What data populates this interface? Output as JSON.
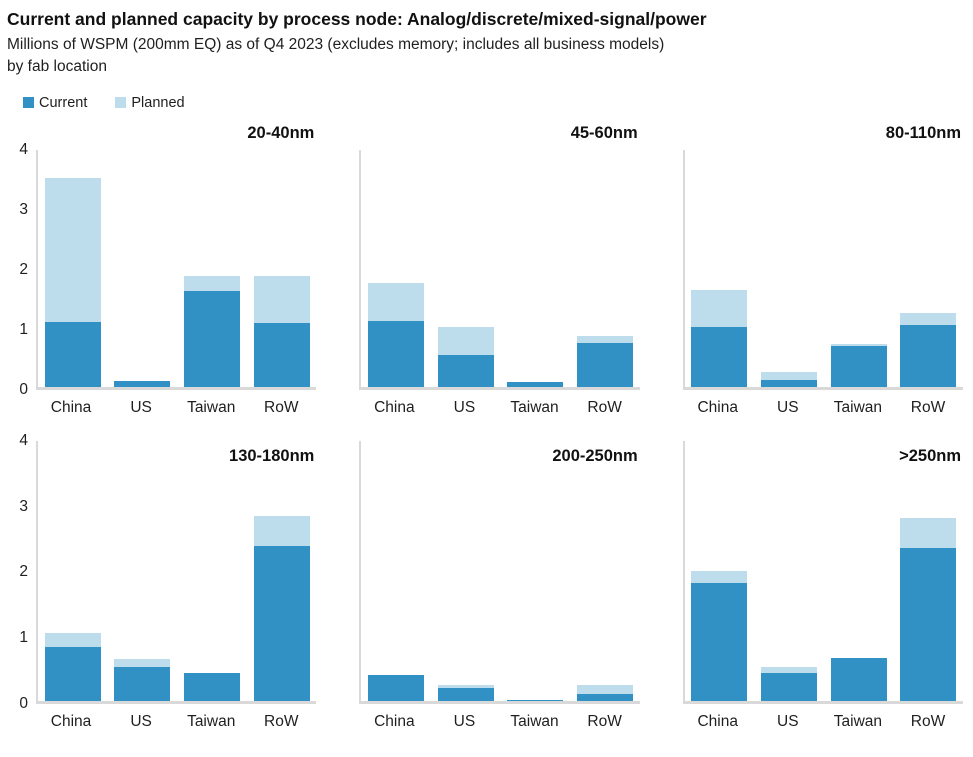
{
  "header": {
    "title": "Current and planned capacity by process node: Analog/discrete/mixed-signal/power",
    "subtitle_line1": "Millions of WSPM (200mm EQ) as of Q4 2023 (excludes memory; includes all business models)",
    "subtitle_line2": "by fab location"
  },
  "legend": {
    "current_label": "Current",
    "planned_label": "Planned"
  },
  "colors": {
    "current": "#3191c4",
    "planned": "#bddcec",
    "axis_gray": "#d9d9d9"
  },
  "chart_data": {
    "type": "bar",
    "stacked": true,
    "title": "Current and planned capacity by process node: Analog/discrete/mixed-signal/power",
    "subtitle": "Millions of WSPM (200mm EQ) as of Q4 2023 (excludes memory; includes all business models) by fab location",
    "ylabel": "Millions of WSPM (200mm EQ)",
    "xlabel": "",
    "grid": false,
    "legend_position": "top-left",
    "legend_entries": [
      "Current",
      "Planned"
    ],
    "categories": [
      "China",
      "US",
      "Taiwan",
      "RoW"
    ],
    "ylim": [
      0,
      4
    ],
    "yticks": [
      4,
      3,
      2,
      1,
      0
    ],
    "charts": [
      {
        "title": "20-40nm",
        "show_y_labels": true,
        "series": [
          {
            "name": "Current",
            "values": [
              1.08,
              0.1,
              1.6,
              1.07
            ]
          },
          {
            "name": "Planned",
            "values": [
              2.4,
              0,
              0.25,
              0.79
            ]
          }
        ]
      },
      {
        "title": "45-60nm",
        "show_y_labels": false,
        "series": [
          {
            "name": "Current",
            "values": [
              1.1,
              0.53,
              0.08,
              0.73
            ]
          },
          {
            "name": "Planned",
            "values": [
              0.63,
              0.47,
              0,
              0.11
            ]
          }
        ]
      },
      {
        "title": "80-110nm",
        "show_y_labels": false,
        "series": [
          {
            "name": "Current",
            "values": [
              1.0,
              0.12,
              0.68,
              1.04
            ]
          },
          {
            "name": "Planned",
            "values": [
              0.61,
              0.13,
              0.03,
              0.2
            ]
          }
        ]
      },
      {
        "title": "130-180nm",
        "show_y_labels": true,
        "series": [
          {
            "name": "Current",
            "values": [
              0.82,
              0.52,
              0.42,
              2.35
            ]
          },
          {
            "name": "Planned",
            "values": [
              0.21,
              0.12,
              0,
              0.45
            ]
          }
        ]
      },
      {
        "title": "200-250nm",
        "show_y_labels": false,
        "series": [
          {
            "name": "Current",
            "values": [
              0.4,
              0.2,
              0.02,
              0.11
            ]
          },
          {
            "name": "Planned",
            "values": [
              0,
              0.05,
              0,
              0.14
            ]
          }
        ]
      },
      {
        "title": ">250nm",
        "show_y_labels": false,
        "series": [
          {
            "name": "Current",
            "values": [
              1.8,
              0.43,
              0.65,
              2.33
            ]
          },
          {
            "name": "Planned",
            "values": [
              0.18,
              0.09,
              0,
              0.46
            ]
          }
        ]
      }
    ]
  }
}
